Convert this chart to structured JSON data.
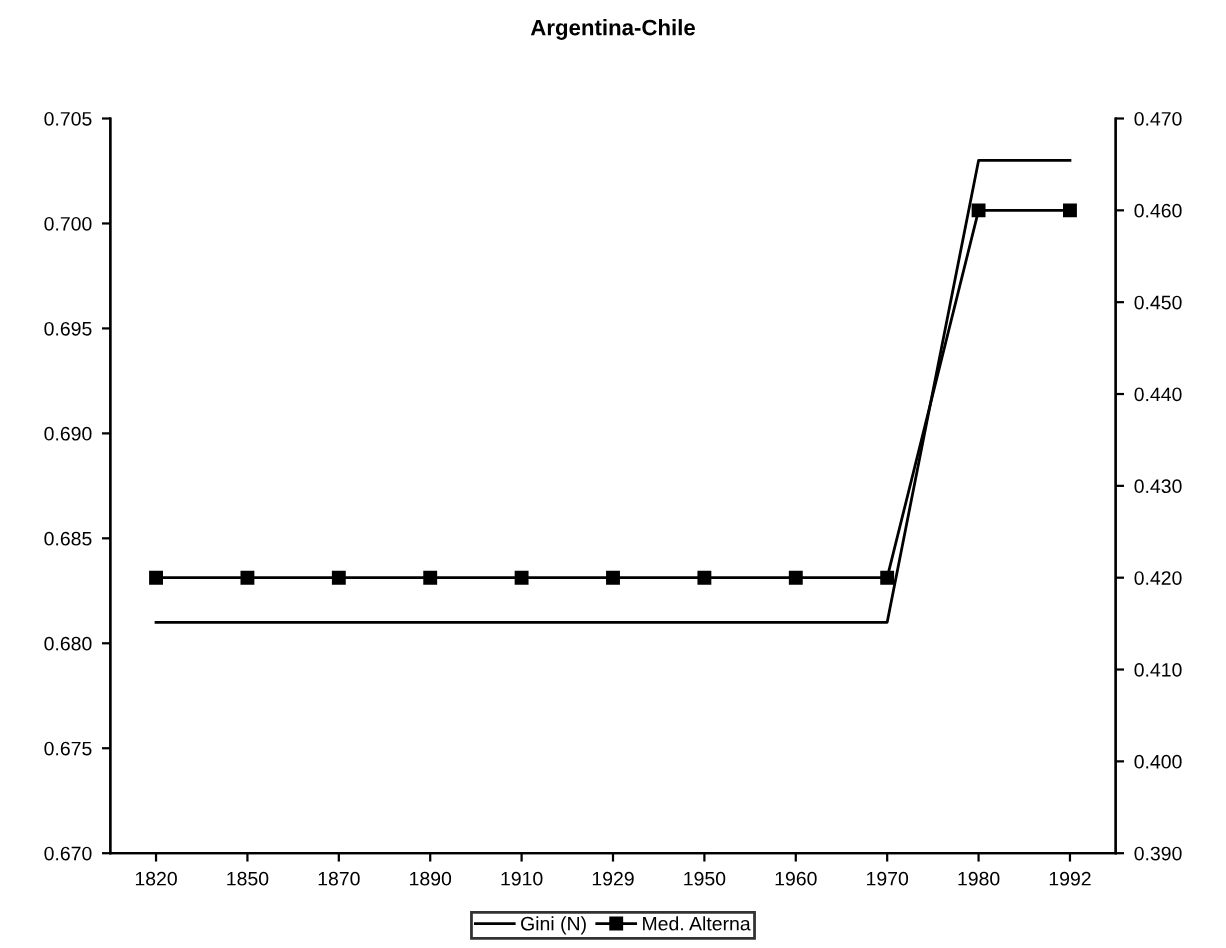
{
  "chart_data": {
    "type": "line",
    "title": "Argentina-Chile",
    "categories": [
      "1820",
      "1850",
      "1870",
      "1890",
      "1910",
      "1929",
      "1950",
      "1960",
      "1970",
      "1980",
      "1992"
    ],
    "series": [
      {
        "name": "Gini (N)",
        "color": "#000000",
        "marker": "none",
        "values": [
          0.681,
          0.681,
          0.681,
          0.681,
          0.681,
          0.681,
          0.681,
          0.681,
          0.681,
          0.703,
          0.703
        ]
      },
      {
        "name": "Med. Alterna",
        "color": "#000000",
        "marker": "square",
        "axis": "y2",
        "values": [
          0.42,
          0.42,
          0.42,
          0.42,
          0.42,
          0.42,
          0.42,
          0.42,
          0.42,
          0.46,
          0.46
        ]
      }
    ],
    "ylim": [
      0.67,
      0.705
    ],
    "yticks": [
      {
        "value": 0.67,
        "label": "0.670"
      },
      {
        "value": 0.675,
        "label": "0.675"
      },
      {
        "value": 0.68,
        "label": "0.680"
      },
      {
        "value": 0.685,
        "label": "0.685"
      },
      {
        "value": 0.69,
        "label": "0.690"
      },
      {
        "value": 0.695,
        "label": "0.695"
      },
      {
        "value": 0.7,
        "label": "0.700"
      },
      {
        "value": 0.705,
        "label": "0.705"
      }
    ],
    "y2lim": [
      0.39,
      0.47
    ],
    "y2ticks": [
      {
        "value": 0.39,
        "label": "0.390"
      },
      {
        "value": 0.4,
        "label": "0.400"
      },
      {
        "value": 0.41,
        "label": "0.410"
      },
      {
        "value": 0.42,
        "label": "0.420"
      },
      {
        "value": 0.43,
        "label": "0.430"
      },
      {
        "value": 0.44,
        "label": "0.440"
      },
      {
        "value": 0.45,
        "label": "0.450"
      },
      {
        "value": 0.46,
        "label": "0.460"
      },
      {
        "value": 0.47,
        "label": "0.470"
      }
    ],
    "grid": false,
    "legend": "bottom"
  }
}
